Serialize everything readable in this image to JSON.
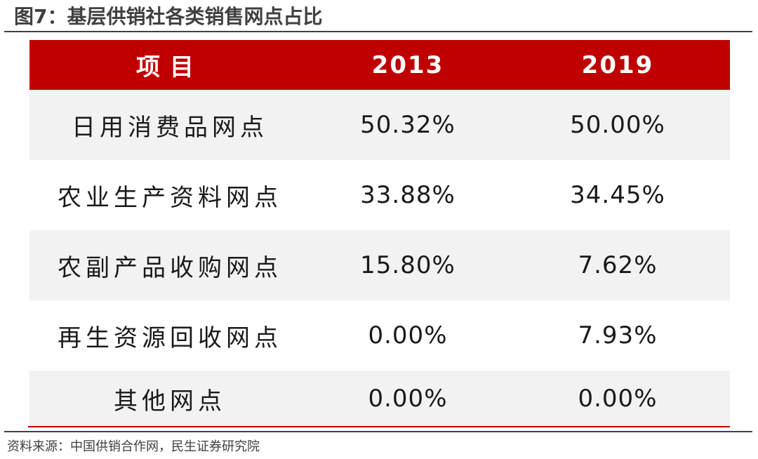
{
  "title": "图7：基层供销社各类销售网点占比",
  "table": {
    "headers": [
      "项目",
      "2013",
      "2019"
    ],
    "rows": [
      {
        "item": "日用消费品网点",
        "y2013": "50.32%",
        "y2019": "50.00%"
      },
      {
        "item": "农业生产资料网点",
        "y2013": "33.88%",
        "y2019": "34.45%"
      },
      {
        "item": "农副产品收购网点",
        "y2013": "15.80%",
        "y2019": "7.62%"
      },
      {
        "item": "再生资源回收网点",
        "y2013": "0.00%",
        "y2019": "7.93%"
      },
      {
        "item": "其他网点",
        "y2013": "0.00%",
        "y2019": "0.00%"
      }
    ]
  },
  "source": "资料来源：中国供销合作网，民生证券研究院",
  "colors": {
    "header_bg": "#c00000",
    "shade_bg": "#f2f2f2",
    "rule": "#404040"
  }
}
